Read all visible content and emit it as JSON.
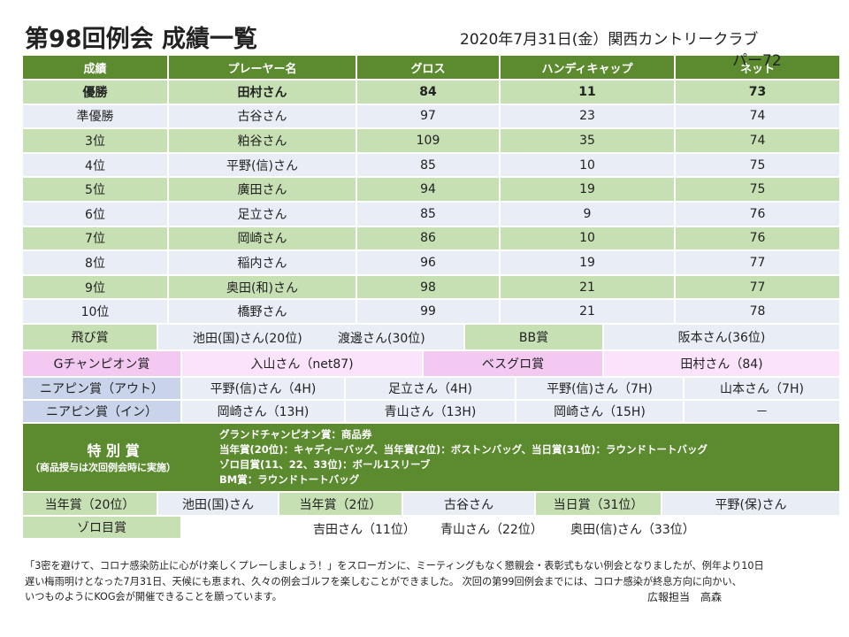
{
  "header": {
    "title": "第98回例会 成績一覧",
    "date": "2020年7月31日(金）関西カントリークラブ",
    "par": "パー72"
  },
  "results": {
    "columns": [
      "成績",
      "プレーヤー名",
      "グロス",
      "ハンディキャップ",
      "ネット"
    ],
    "rows": [
      [
        "優勝",
        "田村さん",
        84,
        11,
        73
      ],
      [
        "準優勝",
        "古谷さん",
        97,
        23,
        74
      ],
      [
        "3位",
        "粕谷さん",
        109,
        35,
        74
      ],
      [
        "4位",
        "平野(信)さん",
        85,
        10,
        75
      ],
      [
        "5位",
        "廣田さん",
        94,
        19,
        75
      ],
      [
        "6位",
        "足立さん",
        85,
        9,
        76
      ],
      [
        "7位",
        "岡崎さん",
        86,
        10,
        76
      ],
      [
        "8位",
        "稲内さん",
        96,
        19,
        77
      ],
      [
        "9位",
        "奥田(和)さん",
        98,
        21,
        77
      ],
      [
        "10位",
        "橋野さん",
        99,
        21,
        78
      ]
    ]
  },
  "awards": {
    "tobi": {
      "label": "飛び賞",
      "winners": [
        "池田(国)さん(20位)",
        "渡邊さん(30位)"
      ]
    },
    "bb": {
      "label": "BB賞",
      "winner": "阪本さん(36位)"
    },
    "gchamp": {
      "label": "Gチャンピオン賞",
      "winner": "入山さん（net87)"
    },
    "besugro": {
      "label": "ベスグロ賞",
      "winner": "田村さん（84)"
    },
    "nearpin_out": {
      "label": "ニアピン賞（アウト）",
      "winners": [
        "平野(信)さん（4H)",
        "足立さん（4H)",
        "平野(信)さん（7H)",
        "山本さん（7H)"
      ]
    },
    "nearpin_in": {
      "label": "ニアピン賞（イン）",
      "winners": [
        "岡崎さん（13H)",
        "青山さん（13H)",
        "岡崎さん（15H)",
        "－"
      ]
    },
    "special": {
      "title": "特 別 賞",
      "note": "（商品授与は次回例会時に実施）",
      "lines": [
        "グランドチャンピオン賞：商品券",
        "当年賞(20位)：キャディーバッグ、当年賞(2位)：ボストンバッグ、当日賞(31位)：ラウンドトートバッグ",
        "ゾロ目賞(11、22、33位)：ボール1スリーブ",
        "BM賞：ラウンドトートバッグ"
      ]
    },
    "tounen20": {
      "label": "当年賞（20位）",
      "winner": "池田(国)さん"
    },
    "tounen2": {
      "label": "当年賞（2位）",
      "winner": "古谷さん"
    },
    "toujitsu": {
      "label": "当日賞（31位）",
      "winner": "平野(保)さん"
    },
    "zorome": {
      "label": "ゾロ目賞",
      "winners": [
        "吉田さん（11位）",
        "青山さん（22位）",
        "奥田(信)さん（33位）"
      ]
    }
  },
  "footer": {
    "lines": [
      "「3密を避けて、コロナ感染防止に心がけ楽しくプレーしましょう！」をスローガンに、ミーティングもなく懇親会・表彰式もない例会となりましたが、例年より10日",
      "遅い梅雨明けとなった7月31日、天候にも恵まれ、久々の例会ゴルフを楽しむことができました。 次回の第99回例会までには、コロナ感染が終息方向に向かい、",
      "いつものようにKOG会が開催できることを願っています。"
    ],
    "signature": "広報担当　高森"
  }
}
